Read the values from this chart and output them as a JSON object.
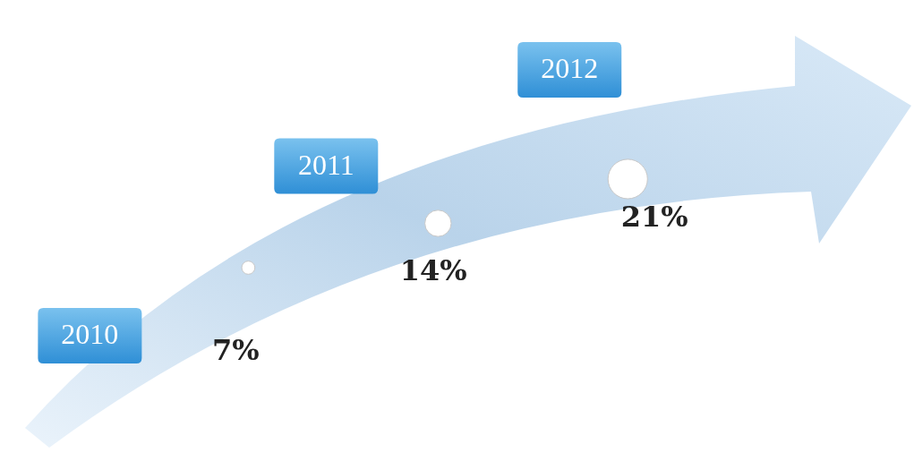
{
  "chart_data": {
    "type": "other",
    "categories": [
      "2010",
      "2011",
      "2012"
    ],
    "values": [
      7,
      14,
      21
    ],
    "value_labels": [
      "7%",
      "14%",
      "21%"
    ],
    "color": "#ffffff"
  }
}
